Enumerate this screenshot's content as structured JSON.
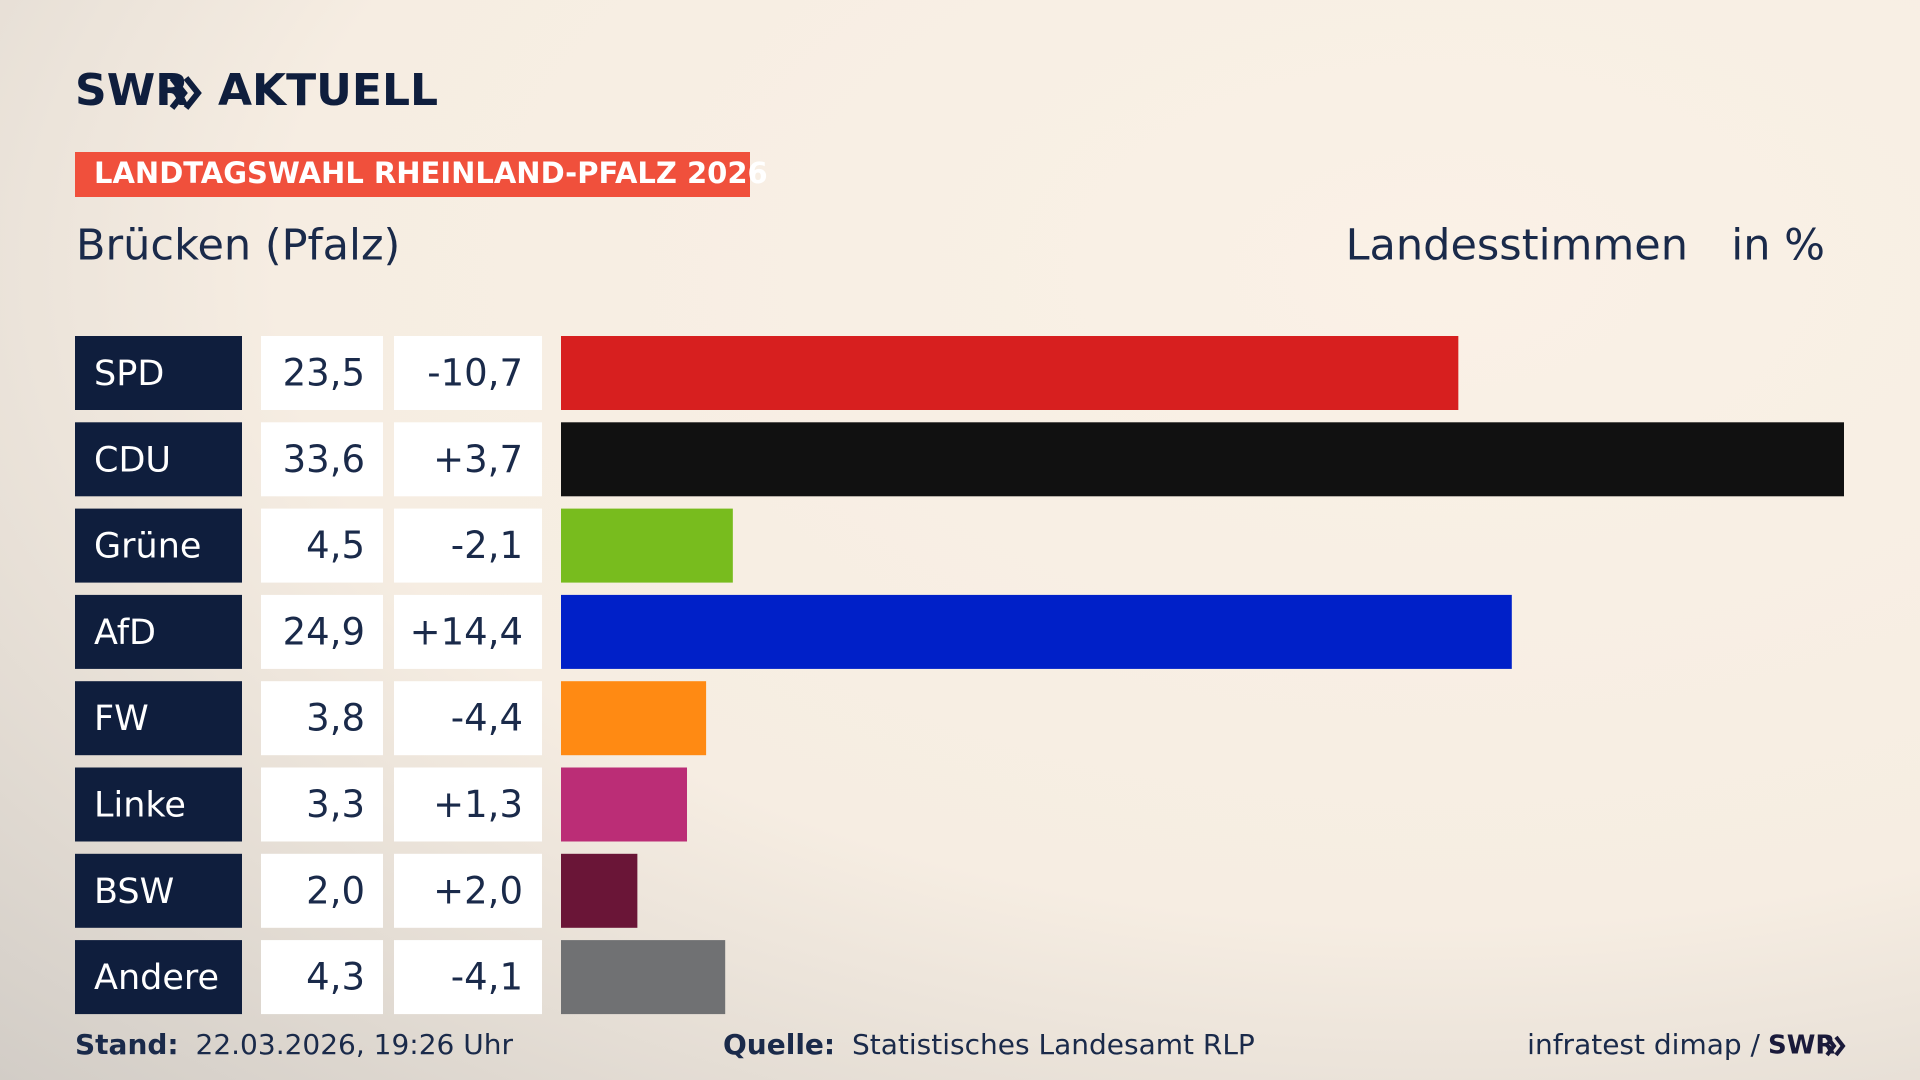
{
  "chart_data": {
    "type": "bar",
    "logo_text": "SWR",
    "logo_suffix": "AKTUELL",
    "badge": "LANDTAGSWAHL RHEINLAND-PFALZ 2026",
    "title": "Brücken (Pfalz)",
    "subtitle": "Landesstimmen",
    "unit": "in %",
    "categories": [
      "SPD",
      "CDU",
      "Grüne",
      "AfD",
      "FW",
      "Linke",
      "BSW",
      "Andere"
    ],
    "values": [
      23.5,
      33.6,
      4.5,
      24.9,
      3.8,
      3.3,
      2.0,
      4.3
    ],
    "value_labels": [
      "23,5",
      "33,6",
      "4,5",
      "24,9",
      "3,8",
      "3,3",
      "2,0",
      "4,3"
    ],
    "changes": [
      -10.7,
      3.7,
      -2.1,
      14.4,
      -4.4,
      1.3,
      2.0,
      -4.1
    ],
    "change_labels": [
      "-10,7",
      "+3,7",
      "-2,1",
      "+14,4",
      "-4,4",
      "+1,3",
      "+2,0",
      "-4,1"
    ],
    "colors": [
      "#d71f1f",
      "#111111",
      "#78bc1e",
      "#0020c8",
      "#ff8a13",
      "#bb2d76",
      "#6a1537",
      "#707173"
    ],
    "stand_label": "Stand:",
    "stand": "22.03.2026, 19:26 Uhr",
    "source_label": "Quelle:",
    "source": "Statistisches Landesamt RLP",
    "credit": "infratest dimap /",
    "credit_logo": "SWR"
  }
}
